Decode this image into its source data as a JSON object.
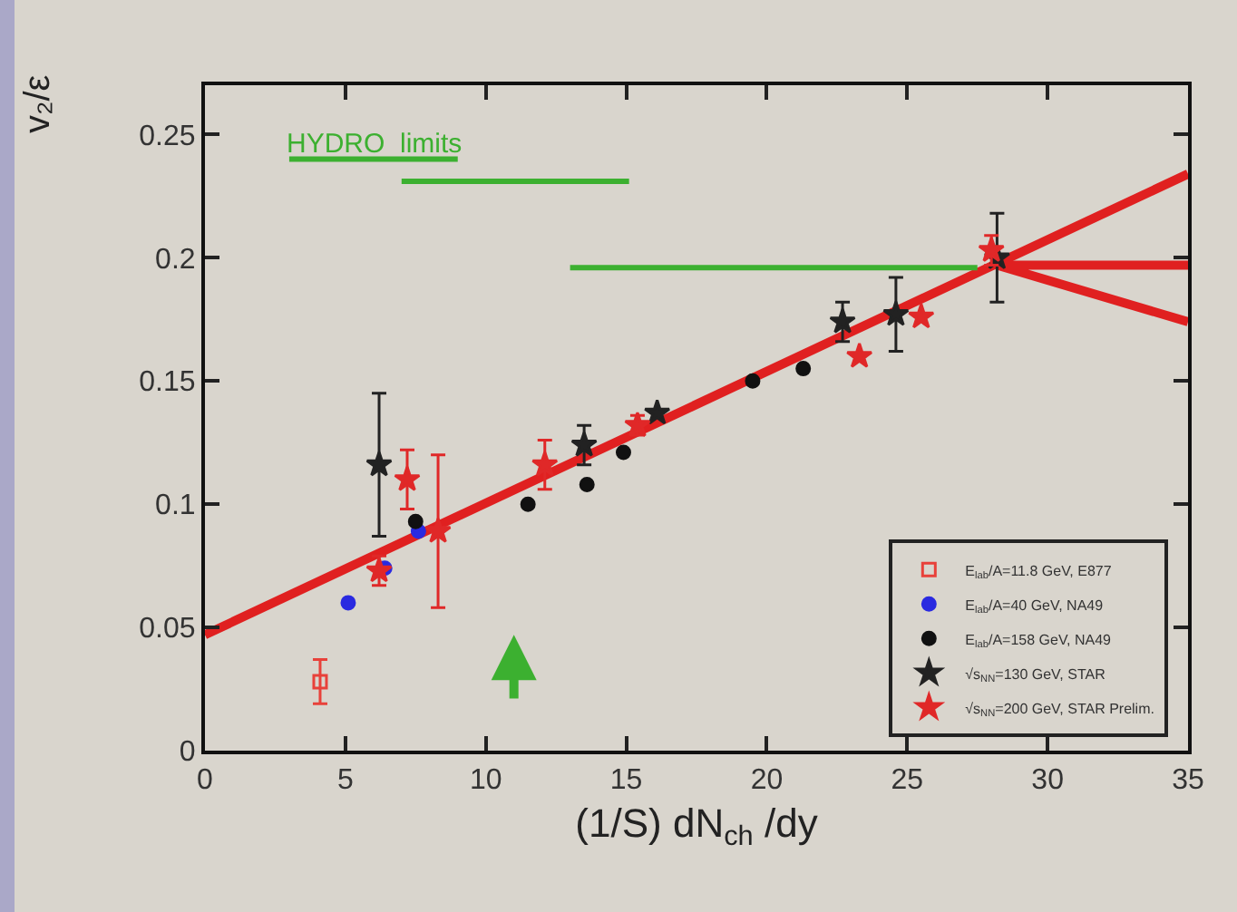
{
  "chart_data": {
    "type": "scatter",
    "xlabel": "(1/S) dN$_{ch}$ /dy",
    "ylabel": "v₂/ε",
    "xlim": [
      0,
      35
    ],
    "ylim": [
      0,
      0.27
    ],
    "xticks": [
      0,
      5,
      10,
      15,
      20,
      25,
      30,
      35
    ],
    "yticks": [
      0,
      0.05,
      0.1,
      0.15,
      0.2,
      0.25
    ],
    "legend": "bottom right",
    "annotations": [
      "HYDRO  limits"
    ],
    "series": [
      {
        "type": "line",
        "color": "#e02020",
        "x": [
          0,
          35
        ],
        "values": [
          0.047,
          0.234
        ]
      },
      {
        "type": "line",
        "color": "#e02020",
        "x": [
          35,
          28.2,
          35
        ],
        "values": [
          0.197,
          0.197,
          0.174
        ]
      },
      {
        "type": "line",
        "color": "#3cb030",
        "x": [
          3,
          9
        ],
        "values": [
          0.24,
          0.24
        ]
      },
      {
        "type": "line",
        "color": "#3cb030",
        "x": [
          7,
          15.1
        ],
        "values": [
          0.231,
          0.231
        ]
      },
      {
        "type": "line",
        "color": "#3cb030",
        "x": [
          13,
          27.5
        ],
        "values": [
          0.196,
          0.196
        ]
      },
      {
        "name": "E$_{lab}$/A=11.8 GeV, E877",
        "marker": "square",
        "color": "#e8413a",
        "x": [
          4.1
        ],
        "values": [
          0.028
        ],
        "errors": [
          0.009
        ]
      },
      {
        "name": "E$_{lab}$/A=40 GeV, NA49",
        "marker": "circle",
        "color": "#2a2ae0",
        "x": [
          5.1,
          6.4,
          7.6
        ],
        "values": [
          0.06,
          0.074,
          0.089
        ]
      },
      {
        "name": "E$_{lab}$/A=158 GeV, NA49",
        "marker": "circle",
        "color": "#111111",
        "x": [
          7.5,
          11.5,
          13.6,
          14.9,
          19.5,
          21.3
        ],
        "values": [
          0.093,
          0.1,
          0.108,
          0.121,
          0.15,
          0.155
        ]
      },
      {
        "name": "√s$_{NN}$=130 GeV, STAR",
        "marker": "star",
        "color": "#222222",
        "x": [
          6.2,
          13.5,
          16.1,
          22.7,
          24.6,
          28.2
        ],
        "values": [
          0.116,
          0.124,
          0.137,
          0.174,
          0.177,
          0.2
        ],
        "errors": [
          0.029,
          0.008,
          null,
          0.008,
          0.015,
          0.018
        ]
      },
      {
        "name": "√s$_{NN}$=200 GeV, STAR Prelim.",
        "marker": "star",
        "color": "#e02828",
        "x": [
          6.2,
          7.2,
          8.3,
          12.1,
          15.4,
          23.3,
          25.5,
          28
        ],
        "values": [
          0.073,
          0.11,
          0.089,
          0.116,
          0.132,
          0.16,
          0.176,
          0.203
        ],
        "errors": [
          0.006,
          0.012,
          0.031,
          0.01,
          0.004,
          null,
          null,
          0.006
        ]
      }
    ]
  }
}
